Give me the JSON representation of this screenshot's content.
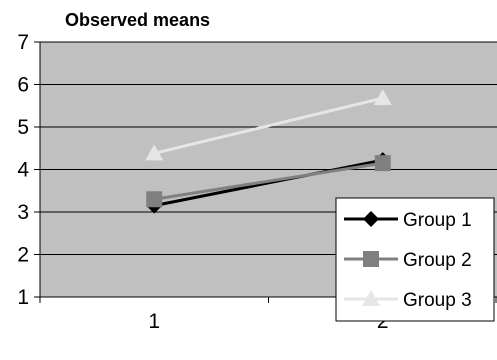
{
  "chart_data": {
    "type": "line",
    "title": "Observed means",
    "xlabel": "",
    "ylabel": "",
    "categories": [
      "1",
      "2"
    ],
    "y_ticks": [
      "1",
      "2",
      "3",
      "4",
      "5",
      "6",
      "7"
    ],
    "ylim": [
      1,
      7
    ],
    "grid": true,
    "legend_position": "right",
    "plot_background": "#c0c0c0",
    "series": [
      {
        "name": "Group 1",
        "values": [
          3.15,
          4.22
        ],
        "color": "#000000",
        "marker": "diamond"
      },
      {
        "name": "Group 2",
        "values": [
          3.3,
          4.15
        ],
        "color": "#808080",
        "marker": "square"
      },
      {
        "name": "Group 3",
        "values": [
          4.38,
          5.68
        ],
        "color": "#e6e6e6",
        "marker": "triangle"
      }
    ]
  }
}
